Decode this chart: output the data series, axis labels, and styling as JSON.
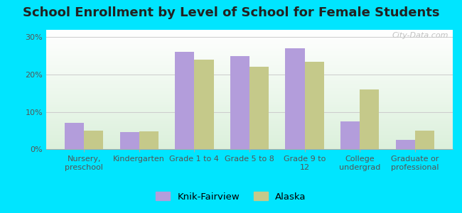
{
  "title": "School Enrollment by Level of School for Female Students",
  "categories": [
    "Nursery,\npreschool",
    "Kindergarten",
    "Grade 1 to 4",
    "Grade 5 to 8",
    "Grade 9 to\n12",
    "College\nundergrad",
    "Graduate or\nprofessional"
  ],
  "knik_values": [
    7.0,
    4.5,
    26.0,
    25.0,
    27.0,
    7.5,
    2.5
  ],
  "alaska_values": [
    5.0,
    4.7,
    24.0,
    22.0,
    23.5,
    16.0,
    5.0
  ],
  "knik_color": "#b39ddb",
  "alaska_color": "#c5c98a",
  "background_color": "#00e5ff",
  "ylim": [
    0,
    32
  ],
  "yticks": [
    0,
    10,
    20,
    30
  ],
  "ytick_labels": [
    "0%",
    "10%",
    "20%",
    "30%"
  ],
  "title_fontsize": 13,
  "tick_fontsize": 8,
  "legend_label_knik": "Knik-Fairview",
  "legend_label_alaska": "Alaska",
  "watermark": "City-Data.com"
}
